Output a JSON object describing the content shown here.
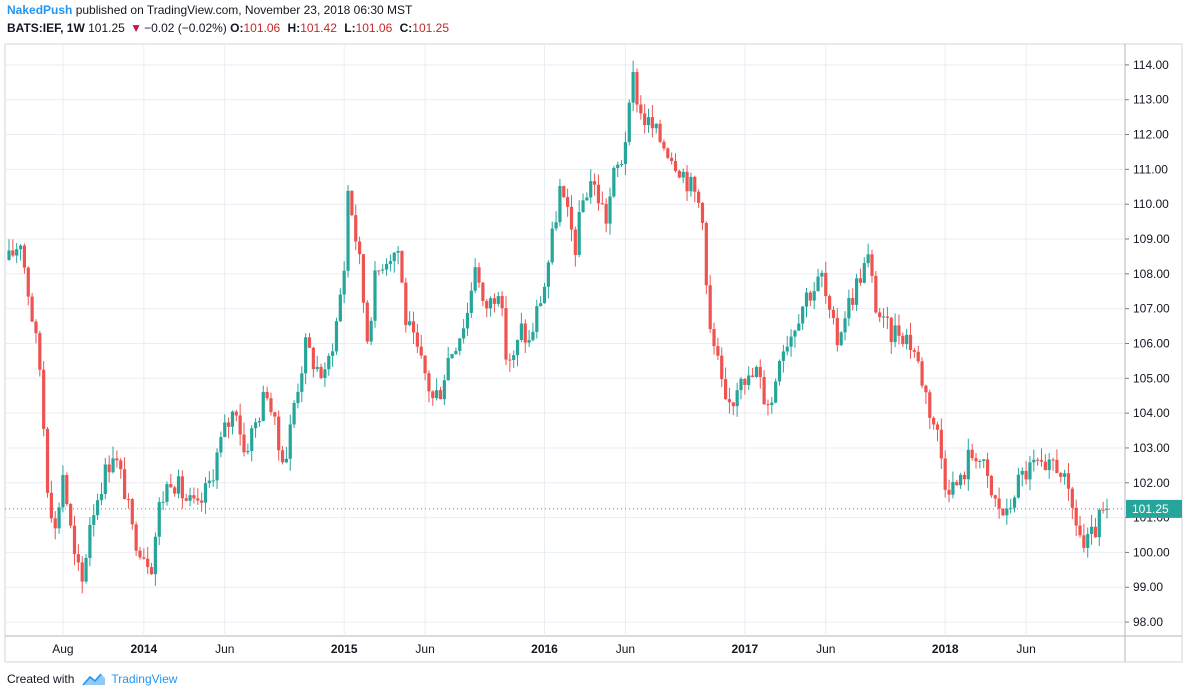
{
  "header": {
    "author": "NakedPush",
    "published_text": "published on TradingView.com, November 23, 2018 06:30 MST",
    "symbol": "BATS:IEF, 1W",
    "last": "101.25",
    "change": "−0.02 (−0.02%)",
    "o_label": "O:",
    "o_value": "101.06",
    "h_label": "H:",
    "h_value": "101.42",
    "l_label": "L:",
    "l_value": "101.06",
    "c_label": "C:",
    "c_value": "101.25"
  },
  "footer": {
    "created_with": "Created with",
    "brand": "TradingView"
  },
  "colors": {
    "up": "#26a69a",
    "down": "#ef5350",
    "grid": "#e8eef3",
    "axis": "#131722",
    "badge": "#26a69a"
  },
  "chart_data": {
    "type": "candlestick",
    "title": "BATS:IEF, 1W",
    "ylim": [
      97.6,
      114.6
    ],
    "y_ticks": [
      "98.00",
      "99.00",
      "100.00",
      "101.00",
      "102.00",
      "103.00",
      "104.00",
      "105.00",
      "106.00",
      "107.00",
      "108.00",
      "109.00",
      "110.00",
      "111.00",
      "112.00",
      "113.00",
      "114.00"
    ],
    "x_ticks": [
      {
        "label": "Aug",
        "week": 14,
        "bold": false
      },
      {
        "label": "2014",
        "week": 35,
        "bold": true
      },
      {
        "label": "Jun",
        "week": 56,
        "bold": false
      },
      {
        "label": "2015",
        "week": 87,
        "bold": true
      },
      {
        "label": "Jun",
        "week": 108,
        "bold": false
      },
      {
        "label": "2016",
        "week": 139,
        "bold": true
      },
      {
        "label": "Jun",
        "week": 160,
        "bold": false
      },
      {
        "label": "2017",
        "week": 191,
        "bold": true
      },
      {
        "label": "Jun",
        "week": 212,
        "bold": false
      },
      {
        "label": "2018",
        "week": 243,
        "bold": true
      },
      {
        "label": "Jun",
        "week": 264,
        "bold": false
      }
    ],
    "total_weeks": 285,
    "last_price": "101.25",
    "price_path": [
      [
        0,
        108.4
      ],
      [
        3,
        109.0
      ],
      [
        5,
        107.5
      ],
      [
        8,
        105.3
      ],
      [
        10,
        102.0
      ],
      [
        12,
        100.6
      ],
      [
        14,
        102.3
      ],
      [
        17,
        99.8
      ],
      [
        19,
        99.1
      ],
      [
        21,
        100.9
      ],
      [
        24,
        102.0
      ],
      [
        27,
        102.9
      ],
      [
        30,
        101.8
      ],
      [
        32,
        100.6
      ],
      [
        35,
        100.0
      ],
      [
        37,
        99.7
      ],
      [
        39,
        101.3
      ],
      [
        42,
        102.2
      ],
      [
        46,
        101.5
      ],
      [
        49,
        101.2
      ],
      [
        52,
        102.0
      ],
      [
        54,
        102.8
      ],
      [
        56,
        103.5
      ],
      [
        59,
        104.2
      ],
      [
        61,
        102.9
      ],
      [
        64,
        103.7
      ],
      [
        67,
        104.7
      ],
      [
        70,
        103.0
      ],
      [
        72,
        102.8
      ],
      [
        74,
        104.3
      ],
      [
        77,
        105.9
      ],
      [
        80,
        105.3
      ],
      [
        82,
        105.0
      ],
      [
        85,
        106.6
      ],
      [
        87,
        108.2
      ],
      [
        88,
        110.4
      ],
      [
        89,
        109.8
      ],
      [
        91,
        108.3
      ],
      [
        93,
        106.2
      ],
      [
        95,
        107.8
      ],
      [
        97,
        108.4
      ],
      [
        99,
        108.6
      ],
      [
        101,
        108.7
      ],
      [
        103,
        106.7
      ],
      [
        105,
        106.0
      ],
      [
        108,
        105.1
      ],
      [
        110,
        104.4
      ],
      [
        112,
        104.7
      ],
      [
        114,
        105.6
      ],
      [
        117,
        106.3
      ],
      [
        119,
        106.9
      ],
      [
        121,
        108.4
      ],
      [
        123,
        107.0
      ],
      [
        125,
        107.2
      ],
      [
        127,
        107.7
      ],
      [
        129,
        105.7
      ],
      [
        131,
        105.5
      ],
      [
        133,
        106.4
      ],
      [
        135,
        106.0
      ],
      [
        137,
        106.9
      ],
      [
        139,
        107.7
      ],
      [
        141,
        109.0
      ],
      [
        143,
        110.4
      ],
      [
        145,
        109.6
      ],
      [
        147,
        108.8
      ],
      [
        149,
        110.1
      ],
      [
        151,
        110.7
      ],
      [
        153,
        110.2
      ],
      [
        155,
        109.6
      ],
      [
        157,
        110.8
      ],
      [
        159,
        111.3
      ],
      [
        161,
        112.6
      ],
      [
        162,
        113.6
      ],
      [
        164,
        112.6
      ],
      [
        166,
        112.3
      ],
      [
        168,
        112.0
      ],
      [
        171,
        111.6
      ],
      [
        174,
        111.1
      ],
      [
        176,
        110.7
      ],
      [
        178,
        110.3
      ],
      [
        180,
        109.8
      ],
      [
        181,
        107.6
      ],
      [
        182,
        106.3
      ],
      [
        184,
        105.4
      ],
      [
        186,
        104.1
      ],
      [
        188,
        104.4
      ],
      [
        190,
        105.3
      ],
      [
        192,
        104.9
      ],
      [
        194,
        105.2
      ],
      [
        196,
        104.5
      ],
      [
        198,
        104.3
      ],
      [
        200,
        105.8
      ],
      [
        203,
        106.3
      ],
      [
        205,
        106.9
      ],
      [
        207,
        107.4
      ],
      [
        209,
        107.6
      ],
      [
        211,
        107.9
      ],
      [
        213,
        106.7
      ],
      [
        215,
        106.1
      ],
      [
        217,
        106.9
      ],
      [
        219,
        107.4
      ],
      [
        221,
        108.0
      ],
      [
        223,
        108.4
      ],
      [
        225,
        107.1
      ],
      [
        227,
        106.5
      ],
      [
        229,
        106.3
      ],
      [
        231,
        106.4
      ],
      [
        233,
        106.2
      ],
      [
        235,
        105.8
      ],
      [
        237,
        105.0
      ],
      [
        239,
        104.1
      ],
      [
        241,
        103.4
      ],
      [
        243,
        102.1
      ],
      [
        245,
        101.9
      ],
      [
        247,
        102.0
      ],
      [
        249,
        102.7
      ],
      [
        251,
        102.9
      ],
      [
        253,
        102.4
      ],
      [
        255,
        101.6
      ],
      [
        257,
        101.3
      ],
      [
        259,
        101.0
      ],
      [
        261,
        101.8
      ],
      [
        263,
        102.2
      ],
      [
        265,
        102.4
      ],
      [
        267,
        102.5
      ],
      [
        269,
        102.1
      ],
      [
        271,
        102.6
      ],
      [
        273,
        102.4
      ],
      [
        275,
        101.5
      ],
      [
        277,
        100.9
      ],
      [
        279,
        100.1
      ],
      [
        281,
        100.4
      ],
      [
        283,
        100.9
      ],
      [
        285,
        101.25
      ]
    ]
  }
}
